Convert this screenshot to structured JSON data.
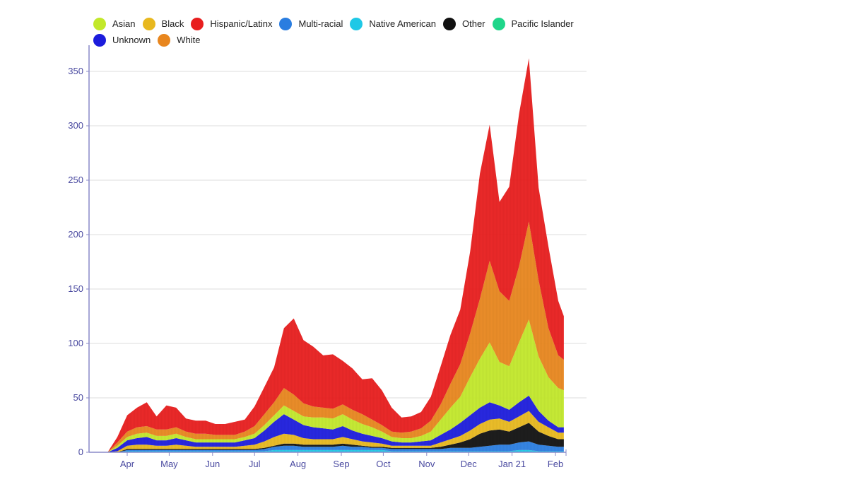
{
  "chart_data": {
    "type": "area",
    "stacked": true,
    "title": "",
    "xlabel": "",
    "ylabel": "",
    "ylim": [
      0,
      370
    ],
    "yticks": [
      0,
      50,
      100,
      150,
      200,
      250,
      300,
      350
    ],
    "xtick_labels": [
      "Apr",
      "May",
      "Jun",
      "Jul",
      "Aug",
      "Sep",
      "Oct",
      "Nov",
      "Dec",
      "Jan 21",
      "Feb"
    ],
    "grid": true,
    "legend_position": "top-left",
    "x": [
      "2020-03-18",
      "2020-03-25",
      "2020-04-01",
      "2020-04-08",
      "2020-04-15",
      "2020-04-22",
      "2020-04-29",
      "2020-05-06",
      "2020-05-13",
      "2020-05-20",
      "2020-05-27",
      "2020-06-03",
      "2020-06-10",
      "2020-06-17",
      "2020-06-24",
      "2020-07-01",
      "2020-07-08",
      "2020-07-15",
      "2020-07-22",
      "2020-07-29",
      "2020-08-05",
      "2020-08-12",
      "2020-08-19",
      "2020-08-26",
      "2020-09-02",
      "2020-09-09",
      "2020-09-16",
      "2020-09-23",
      "2020-09-30",
      "2020-10-07",
      "2020-10-14",
      "2020-10-21",
      "2020-10-28",
      "2020-11-04",
      "2020-11-11",
      "2020-11-18",
      "2020-11-25",
      "2020-12-02",
      "2020-12-09",
      "2020-12-16",
      "2020-12-23",
      "2020-12-30",
      "2021-01-06",
      "2021-01-13",
      "2021-01-20",
      "2021-01-27",
      "2021-02-03",
      "2021-02-07"
    ],
    "series": [
      {
        "name": "Pacific Islander",
        "color": "#1fd68a",
        "values": [
          0,
          0,
          0,
          0,
          0,
          0,
          0,
          0,
          0,
          0,
          0,
          0,
          0,
          0,
          0,
          0,
          0,
          0,
          0,
          0,
          0,
          0,
          0,
          0,
          0,
          0,
          0,
          0,
          0,
          0,
          0,
          0,
          0,
          0,
          0,
          0,
          0,
          0,
          0,
          0,
          0,
          0,
          0,
          0,
          0,
          0,
          0,
          0
        ]
      },
      {
        "name": "Native American",
        "color": "#1ec8e6",
        "values": [
          0,
          0,
          1,
          1,
          1,
          1,
          1,
          1,
          1,
          1,
          1,
          1,
          1,
          1,
          1,
          1,
          1,
          2,
          2,
          2,
          2,
          2,
          2,
          2,
          2,
          2,
          2,
          2,
          2,
          1,
          1,
          1,
          1,
          1,
          1,
          1,
          1,
          1,
          1,
          1,
          1,
          1,
          2,
          2,
          1,
          1,
          1,
          1
        ]
      },
      {
        "name": "Multi-racial",
        "color": "#2a7de0",
        "values": [
          0,
          0,
          1,
          1,
          1,
          1,
          1,
          1,
          1,
          1,
          1,
          1,
          1,
          1,
          1,
          1,
          2,
          3,
          4,
          4,
          3,
          3,
          3,
          3,
          4,
          3,
          3,
          2,
          2,
          2,
          2,
          2,
          2,
          2,
          2,
          3,
          3,
          3,
          4,
          5,
          6,
          6,
          7,
          8,
          6,
          5,
          4,
          4
        ]
      },
      {
        "name": "Other",
        "color": "#111111",
        "values": [
          0,
          0,
          1,
          1,
          1,
          1,
          1,
          1,
          1,
          1,
          1,
          1,
          1,
          1,
          1,
          1,
          1,
          1,
          2,
          2,
          2,
          2,
          2,
          2,
          2,
          2,
          1,
          1,
          1,
          1,
          1,
          1,
          1,
          1,
          2,
          3,
          5,
          8,
          12,
          14,
          14,
          12,
          14,
          17,
          12,
          9,
          7,
          7
        ]
      },
      {
        "name": "Black",
        "color": "#e8b81e",
        "values": [
          0,
          1,
          3,
          4,
          4,
          3,
          3,
          4,
          3,
          2,
          2,
          2,
          2,
          2,
          3,
          4,
          6,
          8,
          9,
          8,
          6,
          5,
          5,
          5,
          6,
          5,
          4,
          4,
          3,
          2,
          2,
          2,
          2,
          2,
          4,
          5,
          6,
          8,
          9,
          10,
          10,
          9,
          10,
          11,
          9,
          8,
          6,
          6
        ]
      },
      {
        "name": "Unknown",
        "color": "#1c1cdc",
        "values": [
          0,
          3,
          5,
          6,
          7,
          5,
          5,
          6,
          5,
          4,
          4,
          4,
          4,
          4,
          5,
          6,
          10,
          14,
          18,
          14,
          12,
          11,
          10,
          9,
          10,
          8,
          7,
          6,
          5,
          4,
          3,
          3,
          4,
          5,
          7,
          9,
          12,
          14,
          15,
          16,
          12,
          11,
          13,
          14,
          10,
          6,
          5,
          5
        ]
      },
      {
        "name": "Asian",
        "color": "#c2e82a",
        "values": [
          0,
          2,
          3,
          4,
          4,
          4,
          4,
          4,
          3,
          3,
          3,
          3,
          3,
          3,
          3,
          4,
          5,
          6,
          8,
          8,
          8,
          9,
          10,
          10,
          11,
          10,
          9,
          8,
          6,
          4,
          4,
          4,
          5,
          8,
          14,
          20,
          24,
          35,
          45,
          55,
          40,
          40,
          55,
          70,
          50,
          40,
          36,
          34
        ]
      },
      {
        "name": "White",
        "color": "#e8861e",
        "values": [
          0,
          3,
          5,
          6,
          6,
          6,
          6,
          6,
          5,
          5,
          5,
          4,
          4,
          4,
          5,
          7,
          10,
          12,
          16,
          15,
          12,
          10,
          9,
          9,
          9,
          9,
          9,
          7,
          6,
          5,
          5,
          6,
          7,
          10,
          14,
          22,
          30,
          40,
          55,
          75,
          65,
          60,
          70,
          90,
          70,
          45,
          30,
          28
        ]
      },
      {
        "name": "Hispanic/Latinx",
        "color": "#e81e1e",
        "values": [
          0,
          5,
          15,
          18,
          22,
          12,
          22,
          18,
          12,
          12,
          12,
          10,
          10,
          12,
          11,
          18,
          25,
          32,
          55,
          70,
          58,
          55,
          48,
          50,
          40,
          38,
          32,
          38,
          32,
          22,
          14,
          14,
          15,
          22,
          35,
          45,
          50,
          75,
          115,
          125,
          82,
          105,
          140,
          150,
          85,
          75,
          50,
          40
        ]
      }
    ]
  },
  "legend": {
    "row1": [
      {
        "label": "Asian",
        "color": "#c2e82a"
      },
      {
        "label": "Black",
        "color": "#e8b81e"
      },
      {
        "label": "Hispanic/Latinx",
        "color": "#e81e1e"
      },
      {
        "label": "Multi-racial",
        "color": "#2a7de0"
      },
      {
        "label": "Native American",
        "color": "#1ec8e6"
      },
      {
        "label": "Other",
        "color": "#111111"
      },
      {
        "label": "Pacific Islander",
        "color": "#1fd68a"
      }
    ],
    "row2": [
      {
        "label": "Unknown",
        "color": "#1c1cdc"
      },
      {
        "label": "White",
        "color": "#e8861e"
      }
    ]
  },
  "colors": {
    "axis": "#8a8ac8",
    "grid": "#dddddd",
    "tick_text": "#4a4aa0"
  }
}
